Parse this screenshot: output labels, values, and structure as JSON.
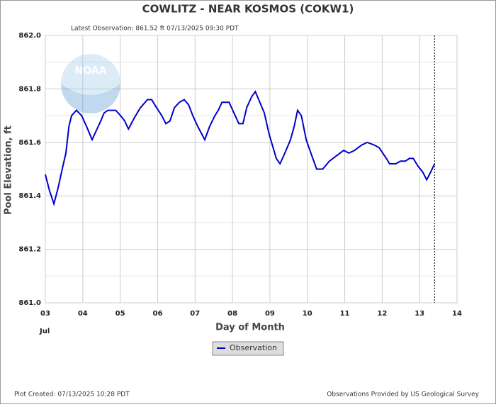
{
  "chart_data": {
    "type": "line",
    "title": "COWLITZ - NEAR KOSMOS  (COKW1)",
    "subtitle": "Latest Observation: 861.52 ft 07/13/2025 09:30 PDT",
    "xlabel": "Day of Month",
    "xsublabel": "Jul",
    "ylabel": "Pool Elevation, ft",
    "watermark": "NOAA",
    "footer_left": "Plot Created: 07/13/2025 10:28 PDT",
    "footer_right": "Observations Provided by US Geological Survey",
    "xlim": [
      3,
      14
    ],
    "xticks": [
      {
        "value": 3,
        "label": "03"
      },
      {
        "value": 4,
        "label": "04"
      },
      {
        "value": 5,
        "label": "05"
      },
      {
        "value": 6,
        "label": "06"
      },
      {
        "value": 7,
        "label": "07"
      },
      {
        "value": 8,
        "label": "08"
      },
      {
        "value": 9,
        "label": "09"
      },
      {
        "value": 10,
        "label": "10"
      },
      {
        "value": 11,
        "label": "11"
      },
      {
        "value": 12,
        "label": "12"
      },
      {
        "value": 13,
        "label": "13"
      },
      {
        "value": 14,
        "label": "14"
      }
    ],
    "ylim": [
      861,
      862
    ],
    "yticks": [
      {
        "value": 861,
        "label": "861.0"
      },
      861.2,
      861.4,
      861.6,
      861.8,
      {
        "value": 862,
        "label": "862.0"
      }
    ],
    "yminorticks": [
      861.1,
      861.3,
      861.5,
      861.7,
      861.9
    ],
    "grid": true,
    "latest_x": 13.4,
    "x": [
      3.0,
      3.11,
      3.23,
      3.34,
      3.45,
      3.55,
      3.63,
      3.7,
      3.83,
      3.97,
      4.1,
      4.25,
      4.38,
      4.48,
      4.57,
      4.67,
      4.88,
      5.01,
      5.12,
      5.22,
      5.37,
      5.54,
      5.73,
      5.84,
      5.97,
      6.11,
      6.22,
      6.33,
      6.45,
      6.58,
      6.71,
      6.83,
      6.94,
      7.07,
      7.26,
      7.39,
      7.53,
      7.62,
      7.72,
      7.91,
      8.04,
      8.17,
      8.28,
      8.38,
      8.51,
      8.61,
      8.7,
      8.85,
      8.98,
      9.17,
      9.27,
      9.4,
      9.55,
      9.65,
      9.74,
      9.84,
      9.97,
      10.12,
      10.25,
      10.41,
      10.59,
      10.78,
      10.97,
      11.11,
      11.26,
      11.45,
      11.6,
      11.79,
      11.92,
      12.11,
      12.2,
      12.36,
      12.49,
      12.62,
      12.73,
      12.83,
      12.96,
      13.08,
      13.19,
      13.3,
      13.4
    ],
    "series": [
      {
        "name": "Observation",
        "color": "#0000cc",
        "values": [
          861.48,
          861.42,
          861.37,
          861.43,
          861.5,
          861.56,
          861.66,
          861.7,
          861.72,
          861.7,
          861.66,
          861.61,
          861.65,
          861.68,
          861.71,
          861.72,
          861.72,
          861.7,
          861.68,
          861.65,
          861.69,
          861.73,
          861.76,
          861.76,
          861.73,
          861.7,
          861.67,
          861.68,
          861.73,
          861.75,
          861.76,
          861.74,
          861.7,
          861.66,
          861.61,
          861.66,
          861.7,
          861.72,
          861.75,
          861.75,
          861.71,
          861.67,
          861.67,
          861.73,
          861.77,
          861.79,
          861.76,
          861.71,
          861.63,
          861.54,
          861.52,
          861.56,
          861.61,
          861.66,
          861.72,
          861.7,
          861.61,
          861.55,
          861.5,
          861.5,
          861.53,
          861.55,
          861.57,
          861.56,
          861.57,
          861.59,
          861.6,
          861.59,
          861.58,
          861.54,
          861.52,
          861.52,
          861.53,
          861.53,
          861.54,
          861.54,
          861.51,
          861.49,
          861.46,
          861.49,
          861.52
        ]
      }
    ]
  }
}
